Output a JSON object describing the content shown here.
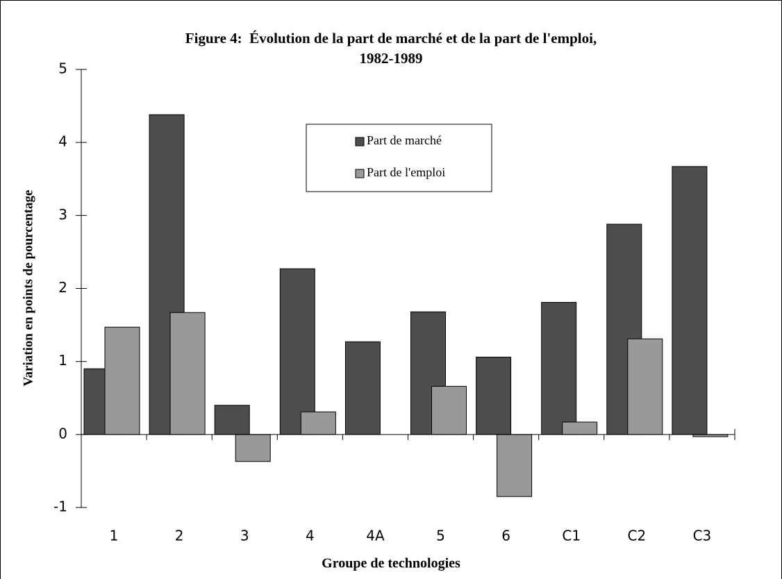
{
  "chart_data": {
    "type": "bar",
    "title": [
      "Figure 4:  Évolution de la part de marché et de la part de l'emploi,",
      "1982-1989"
    ],
    "x_label": "Groupe de technologies",
    "y_label": "Variation en points de pourcentage",
    "categories": [
      "1",
      "2",
      "3",
      "4",
      "4A",
      "5",
      "6",
      "C1",
      "C2",
      "C3"
    ],
    "series": [
      {
        "name": "Part de marché",
        "color": "#4d4d4d",
        "values": [
          0.9,
          4.38,
          0.4,
          2.27,
          1.27,
          1.68,
          1.06,
          1.81,
          2.88,
          3.67
        ]
      },
      {
        "name": "Part de l'emploi",
        "color": "#999999",
        "values": [
          1.47,
          1.67,
          -0.37,
          0.31,
          null,
          0.66,
          -0.85,
          0.17,
          1.31,
          -0.03
        ]
      }
    ],
    "ylim": [
      -1,
      5
    ],
    "yticks": [
      -1,
      0,
      1,
      2,
      3,
      4,
      5
    ],
    "grid": false
  }
}
